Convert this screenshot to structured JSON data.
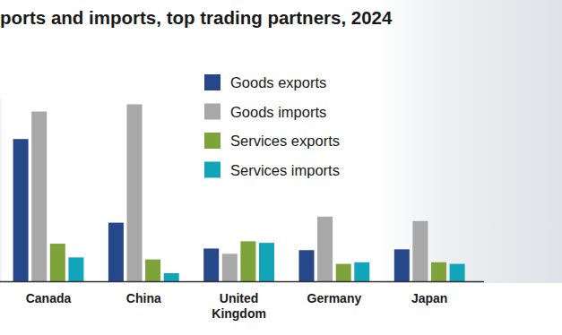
{
  "chart_data": {
    "type": "bar",
    "title": "ports and imports, top trading partners, 2024",
    "categories": [
      "Canada",
      "China",
      "United Kingdom",
      "Germany",
      "Japan"
    ],
    "series": [
      {
        "name": "Goods exports",
        "color": "#26478a",
        "values": [
          352,
          145,
          81,
          77,
          79
        ]
      },
      {
        "name": "Goods imports",
        "color": "#a8a8a8",
        "values": [
          420,
          438,
          68,
          160,
          149
        ]
      },
      {
        "name": "Services exports",
        "color": "#7ea33a",
        "values": [
          93,
          54,
          99,
          43,
          47
        ]
      },
      {
        "name": "Services imports",
        "color": "#12a5b9",
        "values": [
          59,
          20,
          95,
          47,
          43
        ]
      }
    ],
    "ylim": [
      0,
      450
    ],
    "tick_labels": "x",
    "legend": "top"
  }
}
